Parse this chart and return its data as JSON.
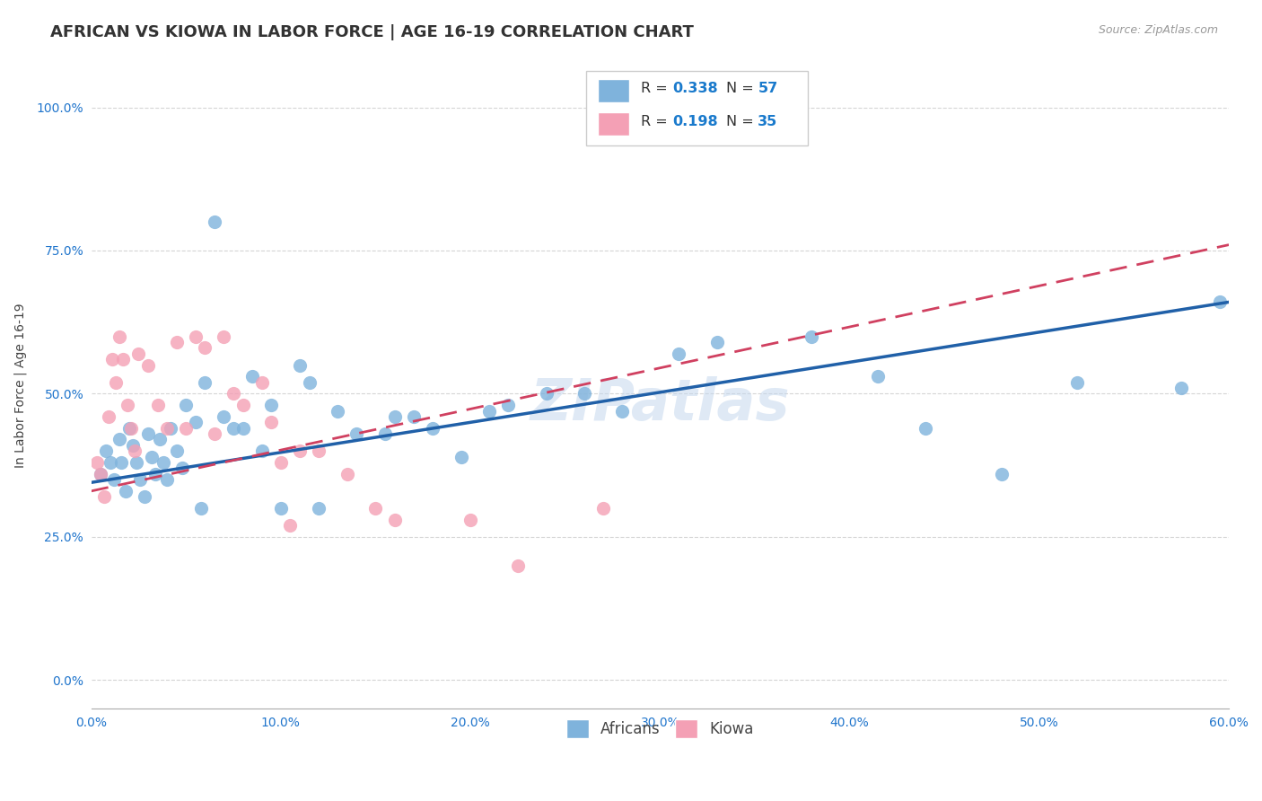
{
  "title": "AFRICAN VS KIOWA IN LABOR FORCE | AGE 16-19 CORRELATION CHART",
  "source": "Source: ZipAtlas.com",
  "ylabel": "In Labor Force | Age 16-19",
  "xlabel_ticks": [
    "0.0%",
    "10.0%",
    "20.0%",
    "30.0%",
    "40.0%",
    "50.0%",
    "60.0%"
  ],
  "ylabel_ticks": [
    "0.0%",
    "25.0%",
    "50.0%",
    "75.0%",
    "100.0%"
  ],
  "xlim": [
    0.0,
    0.6
  ],
  "ylim": [
    -0.05,
    1.08
  ],
  "africans_R": 0.338,
  "africans_N": 57,
  "kiowa_R": 0.198,
  "kiowa_N": 35,
  "africans_color": "#7fb3dc",
  "kiowa_color": "#f4a0b5",
  "africans_line_color": "#2060a8",
  "kiowa_line_color": "#d04060",
  "watermark": "ZIPatlas",
  "background_color": "#ffffff",
  "grid_color": "#d5d5d5",
  "africans_x": [
    0.005,
    0.008,
    0.01,
    0.012,
    0.015,
    0.016,
    0.018,
    0.02,
    0.022,
    0.024,
    0.026,
    0.028,
    0.03,
    0.032,
    0.034,
    0.036,
    0.038,
    0.04,
    0.042,
    0.045,
    0.048,
    0.05,
    0.055,
    0.058,
    0.06,
    0.065,
    0.07,
    0.075,
    0.08,
    0.085,
    0.09,
    0.095,
    0.1,
    0.11,
    0.115,
    0.12,
    0.13,
    0.14,
    0.155,
    0.16,
    0.17,
    0.18,
    0.195,
    0.21,
    0.22,
    0.24,
    0.26,
    0.28,
    0.31,
    0.33,
    0.38,
    0.415,
    0.44,
    0.48,
    0.52,
    0.575,
    0.595
  ],
  "africans_y": [
    0.36,
    0.4,
    0.38,
    0.35,
    0.42,
    0.38,
    0.33,
    0.44,
    0.41,
    0.38,
    0.35,
    0.32,
    0.43,
    0.39,
    0.36,
    0.42,
    0.38,
    0.35,
    0.44,
    0.4,
    0.37,
    0.48,
    0.45,
    0.3,
    0.52,
    0.8,
    0.46,
    0.44,
    0.44,
    0.53,
    0.4,
    0.48,
    0.3,
    0.55,
    0.52,
    0.3,
    0.47,
    0.43,
    0.43,
    0.46,
    0.46,
    0.44,
    0.39,
    0.47,
    0.48,
    0.5,
    0.5,
    0.47,
    0.57,
    0.59,
    0.6,
    0.53,
    0.44,
    0.36,
    0.52,
    0.51,
    0.66
  ],
  "kiowa_x": [
    0.003,
    0.005,
    0.007,
    0.009,
    0.011,
    0.013,
    0.015,
    0.017,
    0.019,
    0.021,
    0.023,
    0.025,
    0.03,
    0.035,
    0.04,
    0.045,
    0.05,
    0.055,
    0.06,
    0.065,
    0.07,
    0.075,
    0.08,
    0.09,
    0.095,
    0.1,
    0.105,
    0.11,
    0.12,
    0.135,
    0.15,
    0.16,
    0.2,
    0.225,
    0.27
  ],
  "kiowa_y": [
    0.38,
    0.36,
    0.32,
    0.46,
    0.56,
    0.52,
    0.6,
    0.56,
    0.48,
    0.44,
    0.4,
    0.57,
    0.55,
    0.48,
    0.44,
    0.59,
    0.44,
    0.6,
    0.58,
    0.43,
    0.6,
    0.5,
    0.48,
    0.52,
    0.45,
    0.38,
    0.27,
    0.4,
    0.4,
    0.36,
    0.3,
    0.28,
    0.28,
    0.2,
    0.3
  ],
  "title_fontsize": 13,
  "axis_label_fontsize": 10,
  "tick_fontsize": 10,
  "source_fontsize": 9,
  "legend_fontsize": 12
}
